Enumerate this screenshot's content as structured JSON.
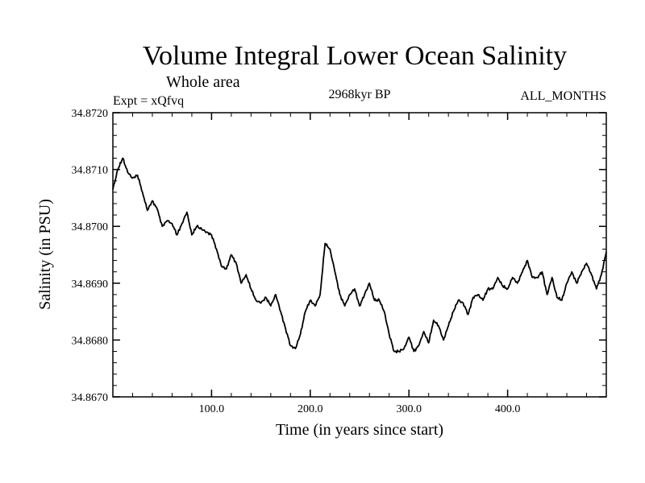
{
  "chart_data": {
    "type": "line",
    "title": "Volume Integral Lower Ocean Salinity",
    "subtitle": "Whole area",
    "expt_label": "Expt = xQfvq",
    "period_label": "2968kyr BP",
    "months_label": "ALL_MONTHS",
    "xlabel": "Time (in years since start)",
    "ylabel": "Salinity (in PSU)",
    "xlim": [
      0,
      500
    ],
    "ylim": [
      34.867,
      34.872
    ],
    "x_ticks": [
      100,
      200,
      300,
      400
    ],
    "x_tick_labels": [
      "100.0",
      "200.0",
      "300.0",
      "400.0"
    ],
    "y_ticks": [
      34.867,
      34.868,
      34.869,
      34.87,
      34.871,
      34.872
    ],
    "y_tick_labels": [
      "34.8670",
      "34.8680",
      "34.8690",
      "34.8700",
      "34.8710",
      "34.8720"
    ],
    "series": [
      {
        "name": "salinity",
        "x": [
          0,
          5,
          10,
          15,
          20,
          25,
          30,
          35,
          40,
          45,
          50,
          55,
          60,
          65,
          70,
          75,
          80,
          85,
          90,
          95,
          100,
          105,
          110,
          115,
          120,
          125,
          130,
          135,
          140,
          145,
          150,
          155,
          160,
          165,
          170,
          175,
          180,
          185,
          190,
          195,
          200,
          205,
          210,
          215,
          220,
          225,
          230,
          235,
          240,
          245,
          250,
          255,
          260,
          265,
          270,
          275,
          280,
          285,
          290,
          295,
          300,
          305,
          310,
          315,
          320,
          325,
          330,
          335,
          340,
          345,
          350,
          355,
          360,
          365,
          370,
          375,
          380,
          385,
          390,
          395,
          400,
          405,
          410,
          415,
          420,
          425,
          430,
          435,
          440,
          445,
          450,
          455,
          460,
          465,
          470,
          475,
          480,
          485,
          490,
          495,
          500
        ],
        "values": [
          34.87065,
          34.871,
          34.8712,
          34.87095,
          34.87085,
          34.8709,
          34.8706,
          34.87028,
          34.87045,
          34.8703,
          34.87,
          34.8701,
          34.87005,
          34.86985,
          34.87005,
          34.87025,
          34.86985,
          34.87,
          34.86995,
          34.8699,
          34.86985,
          34.8696,
          34.8693,
          34.86925,
          34.8695,
          34.86935,
          34.869,
          34.86915,
          34.8689,
          34.8687,
          34.86865,
          34.86875,
          34.8686,
          34.8688,
          34.8685,
          34.8682,
          34.8679,
          34.86785,
          34.8681,
          34.8685,
          34.8687,
          34.8686,
          34.8688,
          34.8697,
          34.8696,
          34.8692,
          34.8688,
          34.8686,
          34.8688,
          34.8689,
          34.8686,
          34.8688,
          34.869,
          34.8687,
          34.8687,
          34.8685,
          34.8681,
          34.8678,
          34.8678,
          34.86785,
          34.86805,
          34.8678,
          34.8679,
          34.86815,
          34.86795,
          34.86835,
          34.86825,
          34.868,
          34.86825,
          34.8685,
          34.8687,
          34.86865,
          34.86845,
          34.86875,
          34.8688,
          34.8687,
          34.8689,
          34.8689,
          34.8691,
          34.86895,
          34.8689,
          34.8691,
          34.869,
          34.8692,
          34.8694,
          34.8691,
          34.8691,
          34.8692,
          34.8688,
          34.8691,
          34.86875,
          34.8687,
          34.869,
          34.8692,
          34.869,
          34.8692,
          34.86935,
          34.86915,
          34.8689,
          34.86915,
          34.86955
        ]
      }
    ]
  }
}
